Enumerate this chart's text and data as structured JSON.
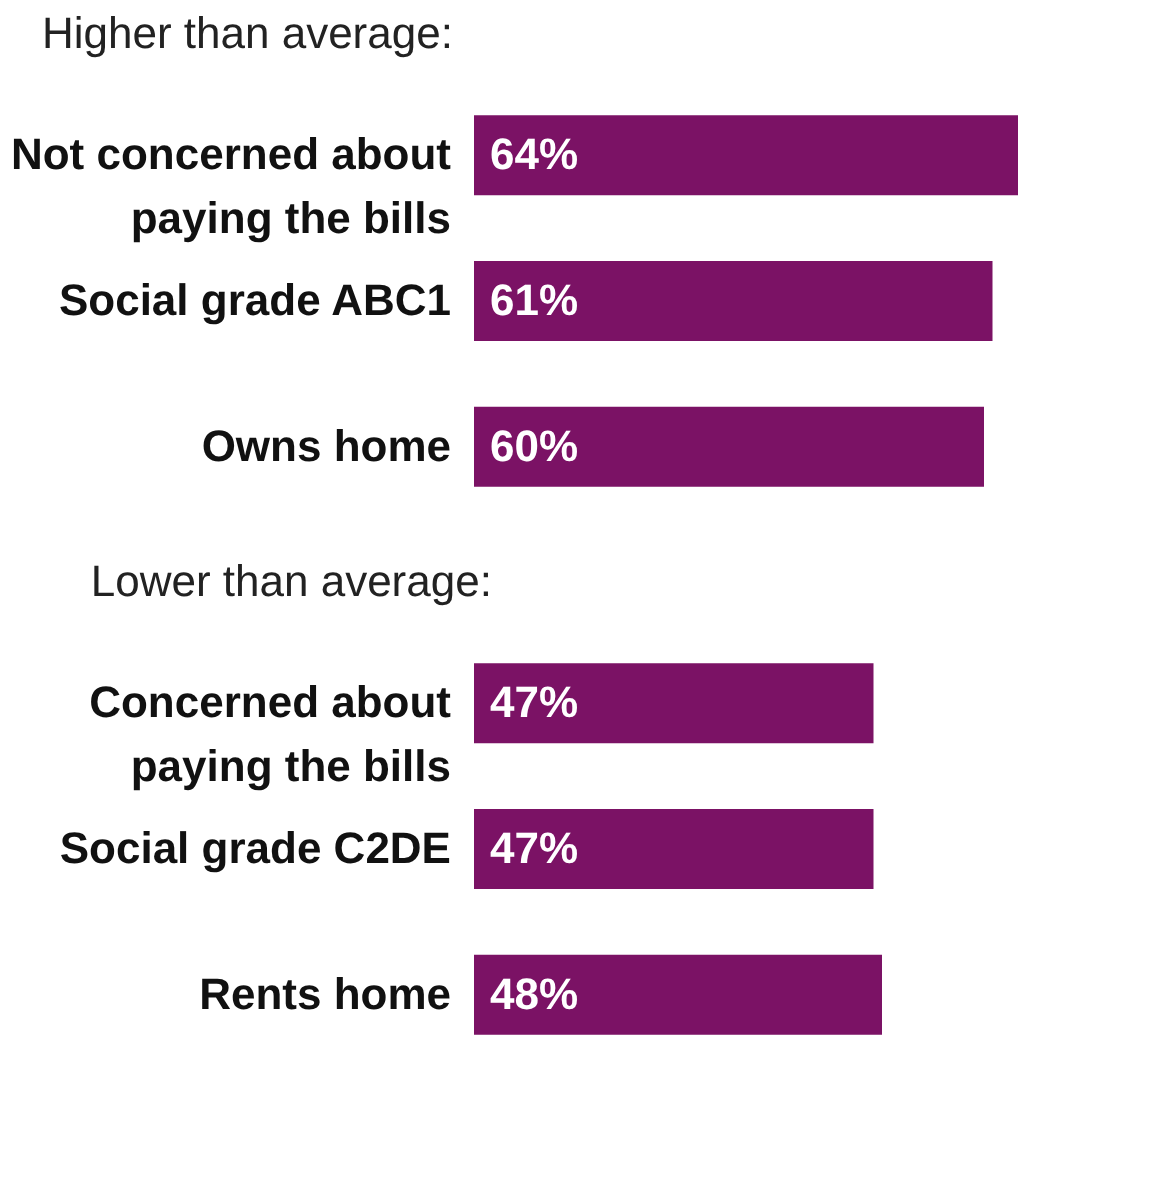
{
  "chart_data": [
    {
      "type": "bar",
      "orientation": "horizontal",
      "title": "Higher than average:",
      "categories": [
        "Not concerned about paying the bills",
        "Social grade ABC1",
        "Owns home"
      ],
      "values": [
        64,
        61,
        60
      ],
      "value_labels": [
        "64%",
        "61%",
        "60%"
      ],
      "color": "#7b1265",
      "tick_labels": "y"
    },
    {
      "type": "bar",
      "orientation": "horizontal",
      "title": "Lower than average:",
      "categories": [
        "Concerned about paying the bills",
        "Social grade C2DE",
        "Rents home"
      ],
      "values": [
        47,
        47,
        48
      ],
      "value_labels": [
        "47%",
        "47%",
        "48%"
      ],
      "color": "#7b1265",
      "tick_labels": "y"
    }
  ]
}
